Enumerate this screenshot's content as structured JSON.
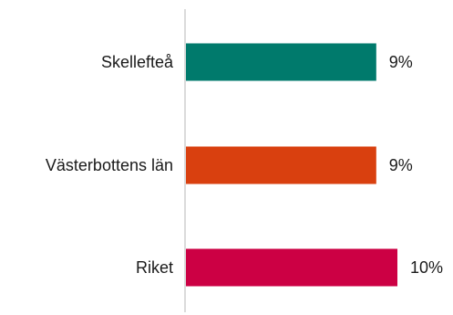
{
  "chart_data": {
    "type": "bar",
    "orientation": "horizontal",
    "title": "",
    "xlabel": "",
    "ylabel": "",
    "categories": [
      "Skellefteå",
      "Västerbottens län",
      "Riket"
    ],
    "values": [
      9,
      9,
      10
    ],
    "value_labels": [
      "9%",
      "9%",
      "10%"
    ],
    "colors": [
      "#007a6c",
      "#d9400f",
      "#cc0044"
    ],
    "xlim": [
      0,
      12
    ],
    "grid": false,
    "legend": "none",
    "axis_color": "#cfcfcf"
  }
}
